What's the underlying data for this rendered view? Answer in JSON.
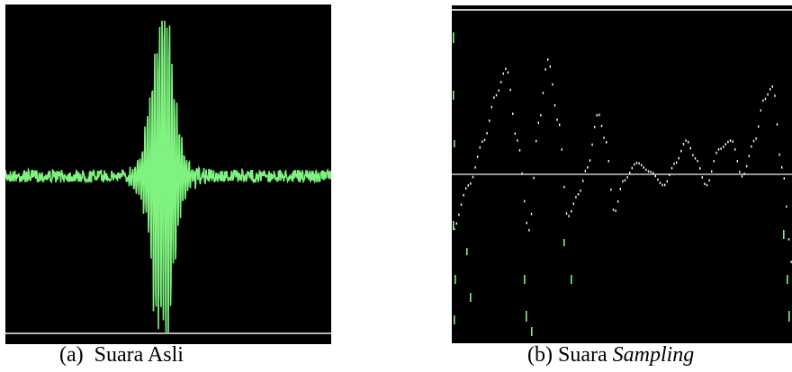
{
  "panels": {
    "a": {
      "caption_label": "(a)",
      "caption_text": "Suara Asli",
      "colors": {
        "background": "#000000",
        "waveform": "#7ff27f",
        "baseline": "#b4b4b4"
      }
    },
    "b": {
      "caption_label": "(b)",
      "caption_text": "Suara",
      "caption_italic": "Sampling",
      "colors": {
        "background": "#000000",
        "samples": "#ffffff",
        "accent_samples": "#7ff27f",
        "axis": "#c8c8c8"
      }
    }
  }
}
